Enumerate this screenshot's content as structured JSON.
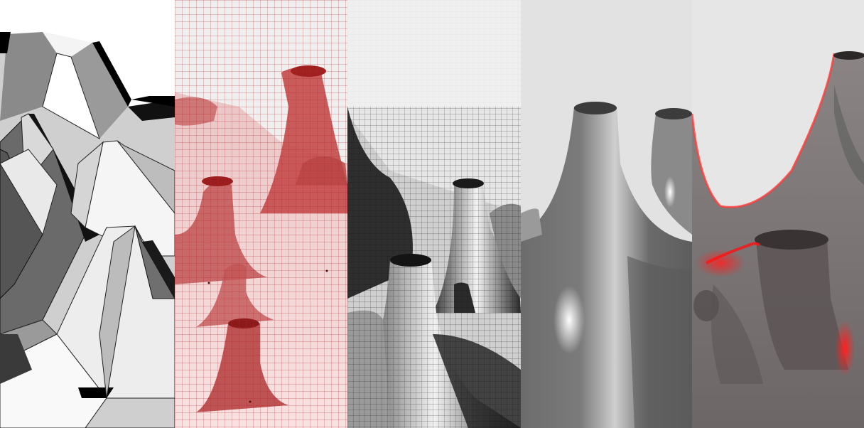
{
  "scene": {
    "panels": [
      {
        "style": "faceted-polygon",
        "colors": [
          "#ffffff",
          "#000000",
          "#7a7a7a"
        ]
      },
      {
        "style": "red-wireframe-translucent",
        "colors": [
          "#b02020",
          "#f3c9c9"
        ]
      },
      {
        "style": "gray-quad-mesh",
        "colors": [
          "#111111",
          "#e6e6e6"
        ]
      },
      {
        "style": "smooth-gray-shaded",
        "colors": [
          "#5a5a5a",
          "#f0f0f0"
        ]
      },
      {
        "style": "xray-gray-red-glow",
        "colors": [
          "#6e6868",
          "#ff1a1a"
        ]
      }
    ]
  }
}
